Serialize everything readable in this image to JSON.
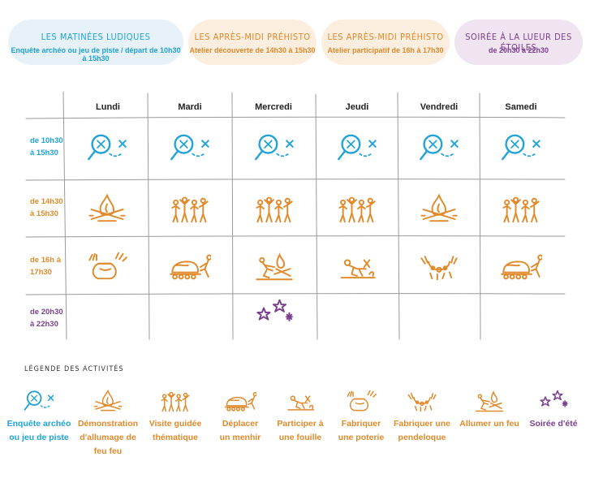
{
  "headers": [
    {
      "title": "LES MATINÉES LUDIQUES",
      "subtitle": "Enquête archéo ou jeu de piste / départ de 10h30 à 15h30"
    },
    {
      "title": "LES APRÈS-MIDI PRÉHISTO",
      "subtitle": "Atelier découverte de 14h30 à 15h30"
    },
    {
      "title": "LES APRÈS-MIDI PRÉHISTO",
      "subtitle": "Atelier participatif de 16h à 17h30"
    },
    {
      "title": "SOIRÉE À LA LUEUR DES ÉTOILES",
      "subtitle": "de 20h30 à 22h30"
    }
  ],
  "days": [
    "Lundi",
    "Mardi",
    "Mercredi",
    "Jeudi",
    "Vendredi",
    "Samedi"
  ],
  "times": [
    [
      "de 10h30",
      "à 15h30"
    ],
    [
      "de 14h30",
      "à 15h30"
    ],
    [
      "de 16h à",
      "17h30"
    ],
    [
      "de 20h30",
      "à 22h30"
    ]
  ],
  "schedule": [
    [
      "enquete",
      "enquete",
      "enquete",
      "enquete",
      "enquete",
      "enquete"
    ],
    [
      "feu",
      "visite",
      "visite",
      "visite",
      "feu",
      "visite"
    ],
    [
      "poterie",
      "menhir",
      "allumer",
      "fouille",
      "pendeloque",
      "menhir"
    ],
    [
      "",
      "",
      "soiree",
      "",
      "",
      ""
    ]
  ],
  "legend_title": "LÉGENDE DES ACTIVITÉS",
  "legend": [
    {
      "icon": "enquete",
      "lines": [
        "Enquête archéo",
        "ou jeu de piste"
      ]
    },
    {
      "icon": "feu",
      "lines": [
        "Démonstration",
        "d'allumage de",
        "feu feu"
      ]
    },
    {
      "icon": "visite",
      "lines": [
        "Visite guidée",
        "thématique"
      ]
    },
    {
      "icon": "menhir",
      "lines": [
        "Déplacer",
        "un menhir"
      ]
    },
    {
      "icon": "fouille",
      "lines": [
        "Participer à",
        "une fouille"
      ]
    },
    {
      "icon": "poterie",
      "lines": [
        "Fabriquer",
        "une poterie"
      ]
    },
    {
      "icon": "pendeloque",
      "lines": [
        "Fabriquer une",
        "pendeloque"
      ]
    },
    {
      "icon": "allumer",
      "lines": [
        "Allumer un feu"
      ]
    },
    {
      "icon": "soiree",
      "lines": [
        "Soirée d'été"
      ]
    }
  ],
  "colors": {
    "blue": "#1fa3d8",
    "orange": "#e08a2c",
    "purple": "#7b3f8f"
  }
}
